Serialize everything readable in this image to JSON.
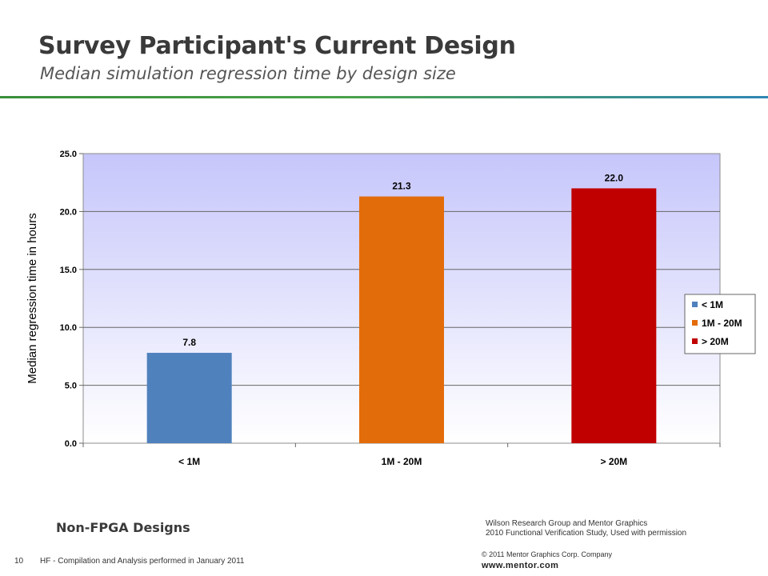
{
  "header": {
    "title": "Survey Participant's Current Design",
    "subtitle": "Median simulation regression time by design size"
  },
  "chart_data": {
    "type": "bar",
    "categories": [
      "< 1M",
      "1M - 20M",
      "> 20M"
    ],
    "values": [
      7.8,
      21.3,
      22.0
    ],
    "value_labels": [
      "7.8",
      "21.3",
      "22.0"
    ],
    "colors": [
      "#4f81bd",
      "#e36c0a",
      "#c00000"
    ],
    "ylabel": "Median regression time in hours",
    "xlabel": "",
    "ylim": [
      0,
      25
    ],
    "yticks": [
      "0.0",
      "5.0",
      "10.0",
      "15.0",
      "20.0",
      "25.0"
    ],
    "grid": true,
    "legend": {
      "placement": "right",
      "entries": [
        "< 1M",
        "1M - 20M",
        "> 20M"
      ]
    }
  },
  "footer": {
    "label": "Non-FPGA Designs",
    "source_line1": "Wilson Research Group and Mentor Graphics",
    "source_line2": "2010 Functional Verification Study,  Used with permission",
    "page_number": "10",
    "note": "HF - Compilation and Analysis performed in January 2011",
    "copyright": "© 2011 Mentor Graphics Corp. Company",
    "website": "www.mentor.com"
  }
}
